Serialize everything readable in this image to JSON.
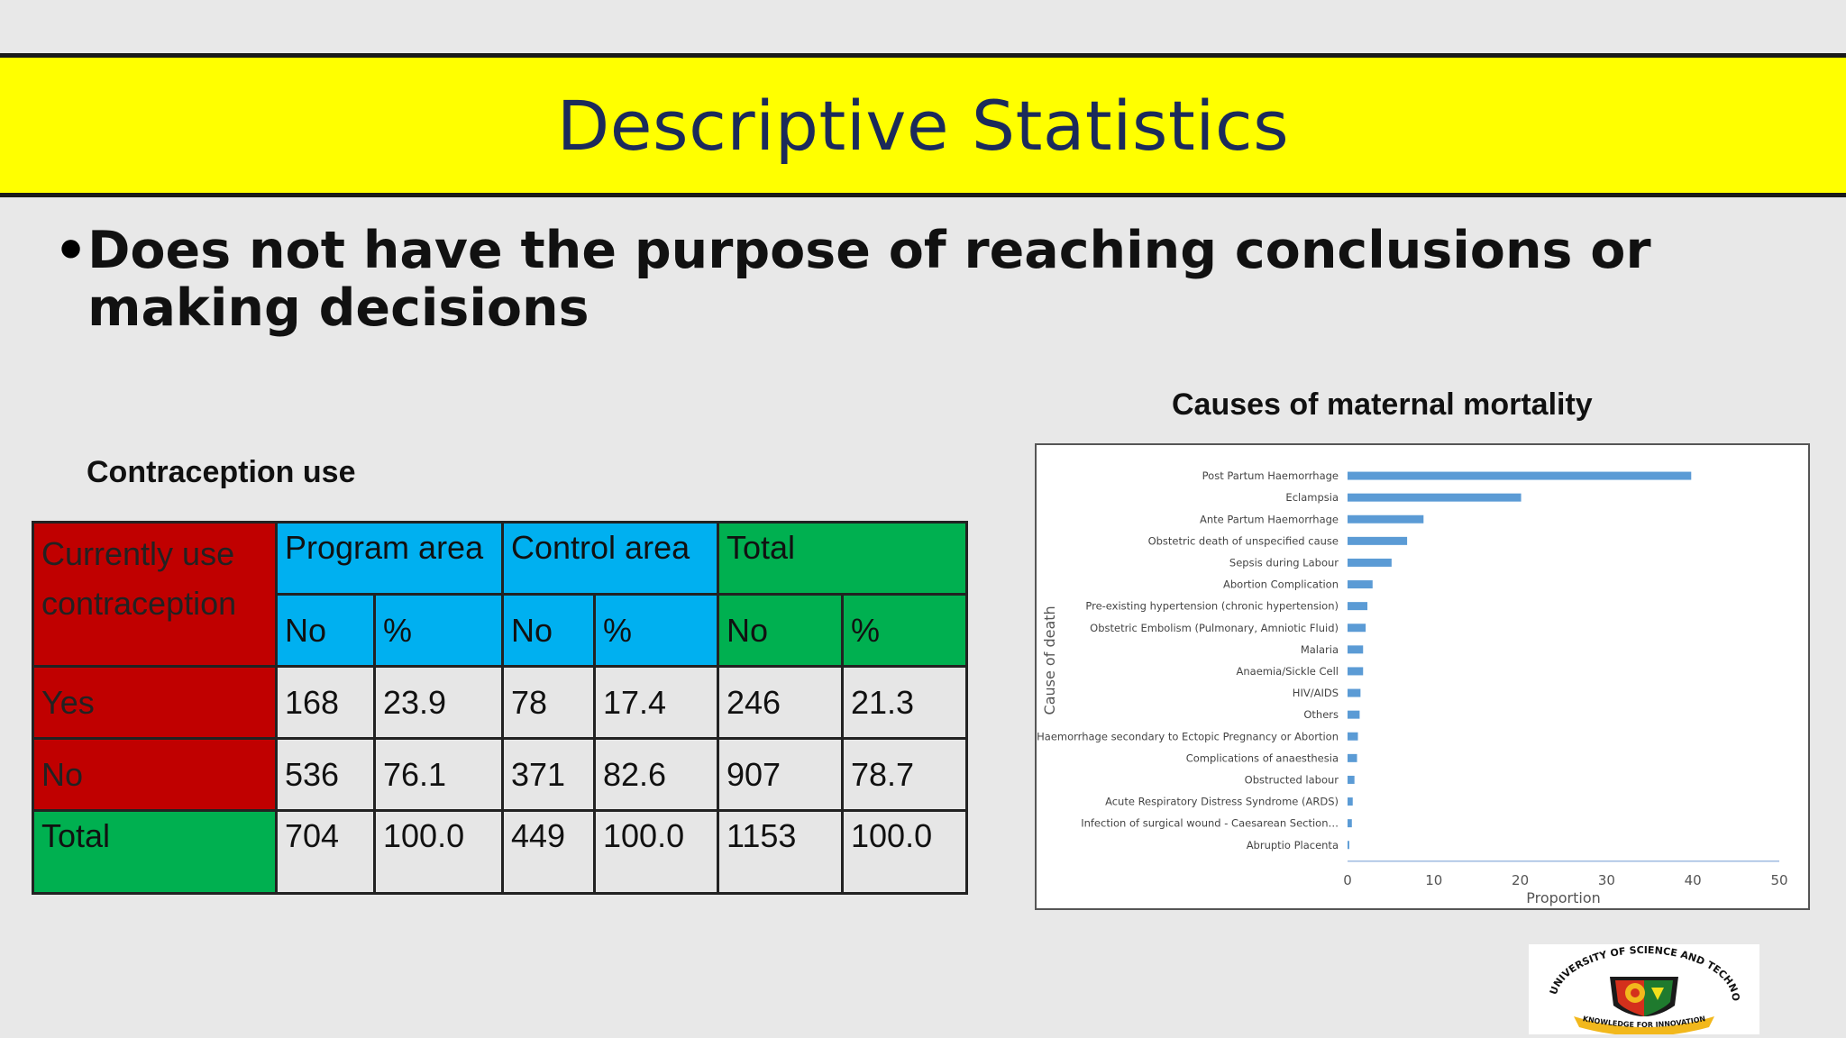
{
  "title": "Descriptive Statistics",
  "bullet": {
    "symbol": "•",
    "text": "Does not have the purpose of reaching conclusions or making decisions"
  },
  "contraception": {
    "label": "Contraception use",
    "header": {
      "row_label": "Currently use contraception",
      "groups": [
        "Program area",
        "Control area",
        "Total"
      ],
      "sub": [
        "No",
        "%",
        "No",
        "%",
        "No",
        "%"
      ]
    },
    "rows": [
      {
        "label": "Yes",
        "cells": [
          "168",
          "23.9",
          "78",
          "17.4",
          "246",
          "21.3"
        ]
      },
      {
        "label": "No",
        "cells": [
          "536",
          "76.1",
          "371",
          "82.6",
          "907",
          "78.7"
        ]
      },
      {
        "label": "Total",
        "cells": [
          "704",
          "100.0",
          "449",
          "100.0",
          "1153",
          "100.0"
        ]
      }
    ],
    "colors": {
      "red": "#c00000",
      "blue": "#00b0f0",
      "green": "#00b050"
    }
  },
  "chart_data": {
    "type": "bar",
    "orientation": "horizontal",
    "title": "Causes of maternal mortality",
    "xlabel": "Proportion",
    "ylabel": "Cause of death",
    "xlim": [
      0,
      50
    ],
    "xticks": [
      0,
      10,
      20,
      30,
      40,
      50
    ],
    "categories": [
      "Post Partum Haemorrhage",
      "Eclampsia",
      "Ante Partum Haemorrhage",
      "Obstetric death of unspecified cause",
      "Sepsis during Labour",
      "Abortion Complication",
      "Pre-existing hypertension (chronic hypertension)",
      "Obstetric Embolism (Pulmonary, Amniotic Fluid)",
      "Malaria",
      "Anaemia/Sickle Cell",
      "HIV/AIDS",
      "Others",
      "Haemorrhage secondary to Ectopic Pregnancy or Abortion",
      "Complications of anaesthesia",
      "Obstructed labour",
      "Acute Respiratory Distress Syndrome (ARDS)",
      "Infection of surgical wound - Caesarean Section…",
      "Abruptio Placenta"
    ],
    "values": [
      39.8,
      20.1,
      8.8,
      6.9,
      5.1,
      2.9,
      2.3,
      2.1,
      1.8,
      1.8,
      1.5,
      1.4,
      1.2,
      1.1,
      0.8,
      0.6,
      0.5,
      0.2
    ],
    "bar_color": "#5b9bd5",
    "grid": false
  },
  "logo": {
    "text_top": "FIRST UNIVERSITY OF SCIENCE AND TECHNOLOGY",
    "text_bottom": "KNOWLEDGE FOR INNOVATION"
  }
}
